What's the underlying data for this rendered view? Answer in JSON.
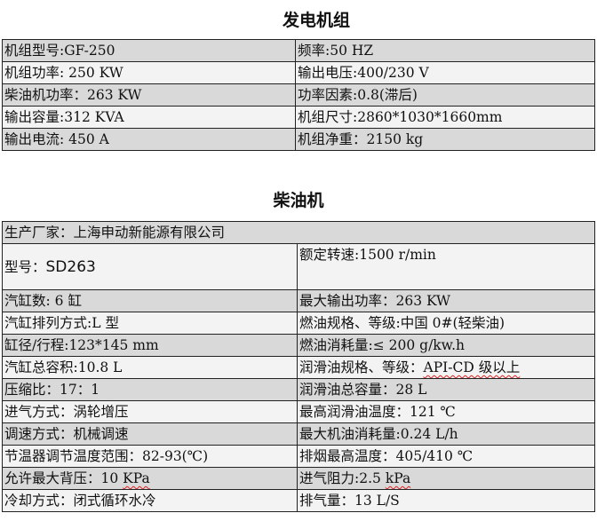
{
  "generator_section": {
    "title": "发电机组",
    "rows": [
      [
        "机组型号:GF-250",
        "频率:50 HZ"
      ],
      [
        "机组功率: 250 KW",
        "输出电压:400/230 V"
      ],
      [
        "柴油机功率：263 KW",
        "功率因素:0.8(滞后)"
      ],
      [
        "输出容量:312 KVA",
        "机组尺寸:2860*1030*1660mm"
      ],
      [
        "输出电流: 450 A",
        "机组净重：2150 kg"
      ]
    ]
  },
  "diesel_section": {
    "title": "柴油机",
    "manufacturer": "生产厂家：上海申动新能源有限公司",
    "model_label": "型号：",
    "model_value": "SD263",
    "rated_speed": "额定转速:1500 r/min",
    "rows": [
      [
        "汽缸数: 6 缸",
        "最大输出功率：263 KW"
      ],
      [
        "汽缸排列方式:L 型",
        "燃油规格、等级:中国 0#(轻柴油)"
      ],
      [
        "缸径/行程:123*145 mm",
        "燃油消耗量:≤ 200 g/kw.h"
      ],
      [
        "汽缸总容积:10.8 L",
        "润滑油规格、等级：",
        "API-CD 级以上"
      ],
      [
        "压缩比：17：1",
        "润滑油总容量：28 L"
      ],
      [
        "进气方式：涡轮增压",
        "最高润滑油温度：121 ℃"
      ],
      [
        "调速方式：机械调速",
        "最大机油消耗量:0.24 L/h"
      ],
      [
        "节温器调节温度范围：82-93(℃)",
        "排烟最高温度：405/410 ℃"
      ],
      [
        "允许最大背压：10 ",
        "进气阻力:2.5 ",
        "KPa",
        "kPa"
      ],
      [
        "冷却方式：闭式循环水冷",
        "排气量：13 L/S"
      ]
    ]
  }
}
